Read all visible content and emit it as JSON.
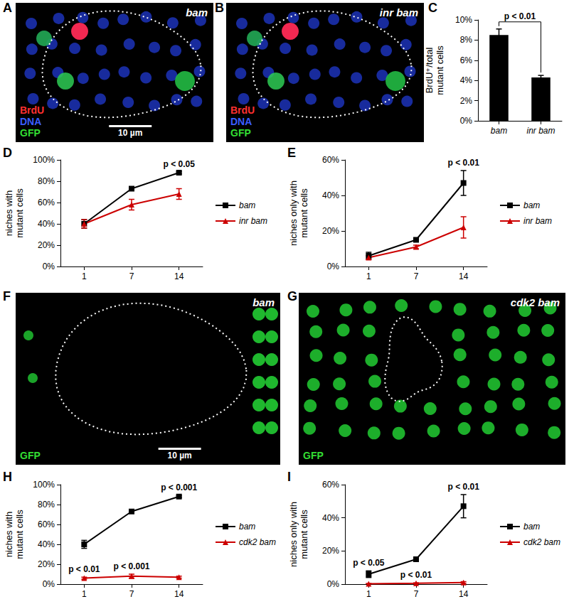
{
  "image_panels": [
    {
      "panel": "A",
      "genotype": "bam",
      "channels": [
        {
          "label": "BrdU",
          "color": "#ff3030"
        },
        {
          "label": "DNA",
          "color": "#3a5cff"
        },
        {
          "label": "GFP",
          "color": "#33dd33"
        }
      ],
      "scale_bar": "10 µm"
    },
    {
      "panel": "B",
      "genotype": "inr bam",
      "channels": [
        {
          "label": "BrdU",
          "color": "#ff3030"
        },
        {
          "label": "DNA",
          "color": "#3a5cff"
        },
        {
          "label": "GFP",
          "color": "#33dd33"
        }
      ]
    },
    {
      "panel": "F",
      "genotype": "bam",
      "channels": [
        {
          "label": "GFP",
          "color": "#33dd33"
        }
      ],
      "scale_bar": "10 µm"
    },
    {
      "panel": "G",
      "genotype": "cdk2 bam",
      "channels": [
        {
          "label": "GFP",
          "color": "#33dd33"
        }
      ]
    }
  ],
  "chart_data": [
    {
      "panel": "C",
      "type": "bar",
      "y_label": "BrdU⁺/total\nmutant cells",
      "categories": [
        "bam",
        "inr bam"
      ],
      "values": [
        8.5,
        4.3
      ],
      "errors": [
        0.6,
        0.2
      ],
      "color": "#000000",
      "ylim": [
        0,
        10
      ],
      "yticks": [
        {
          "value": 0,
          "label": "0%"
        },
        {
          "value": 2,
          "label": "2%"
        },
        {
          "value": 4,
          "label": "4%"
        },
        {
          "value": 6,
          "label": "6%"
        },
        {
          "value": 8,
          "label": "8%"
        },
        {
          "value": 10,
          "label": "10%"
        }
      ],
      "grid": false,
      "annotations": [
        {
          "text": "p < 0.01",
          "between": [
            "bam",
            "inr bam"
          ]
        }
      ]
    },
    {
      "panel": "D",
      "type": "line",
      "y_label": "niches with\nmutant cells",
      "categories": [
        "1",
        "7",
        "14"
      ],
      "series": [
        {
          "name": "bam",
          "color": "#000000",
          "marker": "square",
          "values": [
            40,
            73,
            88
          ],
          "errors": [
            4,
            1,
            1
          ]
        },
        {
          "name": "inr bam",
          "color": "#cc0000",
          "marker": "triangle",
          "values": [
            40,
            58,
            68
          ],
          "errors": [
            4,
            5,
            5
          ]
        }
      ],
      "ylim": [
        0,
        100
      ],
      "yticks": [
        {
          "value": 0,
          "label": "0%"
        },
        {
          "value": 20,
          "label": "20%"
        },
        {
          "value": 40,
          "label": "40%"
        },
        {
          "value": 60,
          "label": "60%"
        },
        {
          "value": 80,
          "label": "80%"
        },
        {
          "value": 100,
          "label": "100%"
        }
      ],
      "grid": false,
      "legend": "right",
      "annotations": [
        {
          "x": "14",
          "series": "bam",
          "text": "p < 0.05"
        }
      ]
    },
    {
      "panel": "E",
      "type": "line",
      "y_label": "niches only with\nmutant cells",
      "categories": [
        "1",
        "7",
        "14"
      ],
      "series": [
        {
          "name": "bam",
          "color": "#000000",
          "marker": "square",
          "values": [
            6,
            15,
            47
          ],
          "errors": [
            2,
            1,
            7
          ]
        },
        {
          "name": "inr bam",
          "color": "#cc0000",
          "marker": "triangle",
          "values": [
            5,
            11,
            22
          ],
          "errors": [
            1,
            1,
            6
          ]
        }
      ],
      "ylim": [
        0,
        60
      ],
      "yticks": [
        {
          "value": 0,
          "label": "0%"
        },
        {
          "value": 20,
          "label": "20%"
        },
        {
          "value": 40,
          "label": "40%"
        },
        {
          "value": 60,
          "label": "60%"
        }
      ],
      "grid": false,
      "legend": "right",
      "annotations": [
        {
          "x": "14",
          "series": "bam",
          "text": "p < 0.01"
        }
      ]
    },
    {
      "panel": "H",
      "type": "line",
      "y_label": "niches with\nmutant cells",
      "categories": [
        "1",
        "7",
        "14"
      ],
      "series": [
        {
          "name": "bam",
          "color": "#000000",
          "marker": "square",
          "values": [
            40,
            73,
            88
          ],
          "errors": [
            4,
            1,
            1
          ]
        },
        {
          "name": "cdk2 bam",
          "color": "#cc0000",
          "marker": "triangle",
          "values": [
            6,
            8,
            7
          ],
          "errors": [
            1,
            2,
            1
          ]
        }
      ],
      "ylim": [
        0,
        100
      ],
      "yticks": [
        {
          "value": 0,
          "label": "0%"
        },
        {
          "value": 20,
          "label": "20%"
        },
        {
          "value": 40,
          "label": "40%"
        },
        {
          "value": 60,
          "label": "60%"
        },
        {
          "value": 80,
          "label": "80%"
        },
        {
          "value": 100,
          "label": "100%"
        }
      ],
      "grid": false,
      "legend": "right",
      "annotations": [
        {
          "x": "1",
          "series": "cdk2 bam",
          "text": "p < 0.01"
        },
        {
          "x": "7",
          "series": "cdk2 bam",
          "text": "p < 0.001"
        },
        {
          "x": "14",
          "series": "bam",
          "text": "p < 0.001"
        }
      ]
    },
    {
      "panel": "I",
      "type": "line",
      "y_label": "niches only with\nmutant cells",
      "categories": [
        "1",
        "7",
        "14"
      ],
      "series": [
        {
          "name": "bam",
          "color": "#000000",
          "marker": "square",
          "values": [
            6,
            15,
            47
          ],
          "errors": [
            2,
            1,
            7
          ]
        },
        {
          "name": "cdk2 bam",
          "color": "#cc0000",
          "marker": "triangle",
          "values": [
            0.2,
            0.5,
            1
          ],
          "errors": [
            0.2,
            0.3,
            0.5
          ]
        }
      ],
      "ylim": [
        0,
        60
      ],
      "yticks": [
        {
          "value": 0,
          "label": "0%"
        },
        {
          "value": 20,
          "label": "20%"
        },
        {
          "value": 40,
          "label": "40%"
        },
        {
          "value": 60,
          "label": "60%"
        }
      ],
      "grid": false,
      "legend": "right",
      "annotations": [
        {
          "x": "1",
          "series": "bam",
          "text": "p < 0.05"
        },
        {
          "x": "7",
          "series": "cdk2 bam",
          "text": "p < 0.01"
        },
        {
          "x": "14",
          "series": "bam",
          "text": "p < 0.01"
        }
      ]
    }
  ]
}
